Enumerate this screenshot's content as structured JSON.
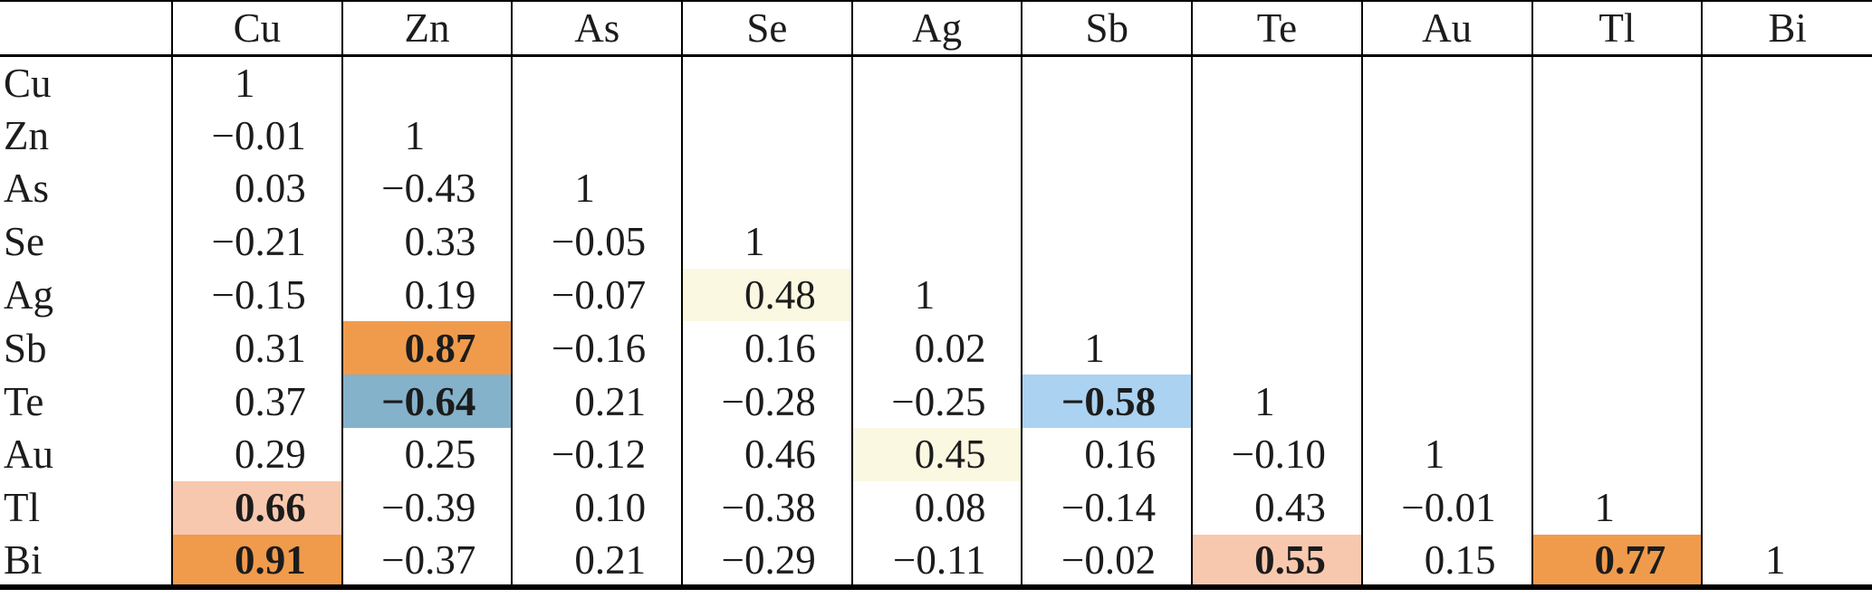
{
  "table": {
    "corner_label": "",
    "columns": [
      "Cu",
      "Zn",
      "As",
      "Se",
      "Ag",
      "Sb",
      "Te",
      "Au",
      "Tl",
      "Bi"
    ],
    "rows": [
      {
        "label": "Cu",
        "cells": [
          {
            "v": "1"
          }
        ]
      },
      {
        "label": "Zn",
        "cells": [
          {
            "v": "−0.01"
          },
          {
            "v": "1"
          }
        ]
      },
      {
        "label": "As",
        "cells": [
          {
            "v": "0.03"
          },
          {
            "v": "−0.43"
          },
          {
            "v": "1"
          }
        ]
      },
      {
        "label": "Se",
        "cells": [
          {
            "v": "−0.21"
          },
          {
            "v": "0.33"
          },
          {
            "v": "−0.05"
          },
          {
            "v": "1"
          }
        ]
      },
      {
        "label": "Ag",
        "cells": [
          {
            "v": "−0.15"
          },
          {
            "v": "0.19"
          },
          {
            "v": "−0.07"
          },
          {
            "v": "0.48",
            "bg": "pale_yellow"
          },
          {
            "v": "1"
          }
        ]
      },
      {
        "label": "Sb",
        "cells": [
          {
            "v": "0.31"
          },
          {
            "v": "0.87",
            "bg": "orange",
            "bold": true
          },
          {
            "v": "−0.16"
          },
          {
            "v": "0.16"
          },
          {
            "v": "0.02"
          },
          {
            "v": "1"
          }
        ]
      },
      {
        "label": "Te",
        "cells": [
          {
            "v": "0.37"
          },
          {
            "v": "−0.64",
            "bg": "steel_blue",
            "bold": true
          },
          {
            "v": "0.21"
          },
          {
            "v": "−0.28"
          },
          {
            "v": "−0.25"
          },
          {
            "v": "−0.58",
            "bg": "light_blue",
            "bold": true
          },
          {
            "v": "1"
          }
        ]
      },
      {
        "label": "Au",
        "cells": [
          {
            "v": "0.29"
          },
          {
            "v": "0.25"
          },
          {
            "v": "−0.12"
          },
          {
            "v": "0.46"
          },
          {
            "v": "0.45",
            "bg": "pale_yellow"
          },
          {
            "v": "0.16"
          },
          {
            "v": "−0.10"
          },
          {
            "v": "1"
          }
        ]
      },
      {
        "label": "Tl",
        "cells": [
          {
            "v": "0.66",
            "bg": "salmon",
            "bold": true
          },
          {
            "v": "−0.39"
          },
          {
            "v": "0.10"
          },
          {
            "v": "−0.38"
          },
          {
            "v": "0.08"
          },
          {
            "v": "−0.14"
          },
          {
            "v": "0.43"
          },
          {
            "v": "−0.01"
          },
          {
            "v": "1"
          }
        ]
      },
      {
        "label": "Bi",
        "cells": [
          {
            "v": "0.91",
            "bg": "orange",
            "bold": true
          },
          {
            "v": "−0.37"
          },
          {
            "v": "0.21"
          },
          {
            "v": "−0.29"
          },
          {
            "v": "−0.11"
          },
          {
            "v": "−0.02"
          },
          {
            "v": "0.55",
            "bg": "salmon",
            "bold": true
          },
          {
            "v": "0.15"
          },
          {
            "v": "0.77",
            "bg": "orange",
            "bold": true
          },
          {
            "v": "1"
          }
        ]
      }
    ]
  },
  "colors": {
    "orange": "#F09B4C",
    "steel_blue": "#84B2CA",
    "light_blue": "#ABD2F0",
    "pale_yellow": "#FAF8E1",
    "salmon": "#F8C8AE",
    "border": "#000000",
    "text": "#1c1c1c"
  },
  "chart_data": {
    "type": "table",
    "title": "",
    "categories": [
      "Cu",
      "Zn",
      "As",
      "Se",
      "Ag",
      "Sb",
      "Te",
      "Au",
      "Tl",
      "Bi"
    ],
    "matrix_lower_triangular": [
      [
        1
      ],
      [
        -0.01,
        1
      ],
      [
        0.03,
        -0.43,
        1
      ],
      [
        -0.21,
        0.33,
        -0.05,
        1
      ],
      [
        -0.15,
        0.19,
        -0.07,
        0.48,
        1
      ],
      [
        0.31,
        0.87,
        -0.16,
        0.16,
        0.02,
        1
      ],
      [
        0.37,
        -0.64,
        0.21,
        -0.28,
        -0.25,
        -0.58,
        1
      ],
      [
        0.29,
        0.25,
        -0.12,
        0.46,
        0.45,
        0.16,
        -0.1,
        1
      ],
      [
        0.66,
        -0.39,
        0.1,
        -0.38,
        0.08,
        -0.14,
        0.43,
        -0.01,
        1
      ],
      [
        0.91,
        -0.37,
        0.21,
        -0.29,
        -0.11,
        -0.02,
        0.55,
        0.15,
        0.77,
        1
      ]
    ]
  }
}
